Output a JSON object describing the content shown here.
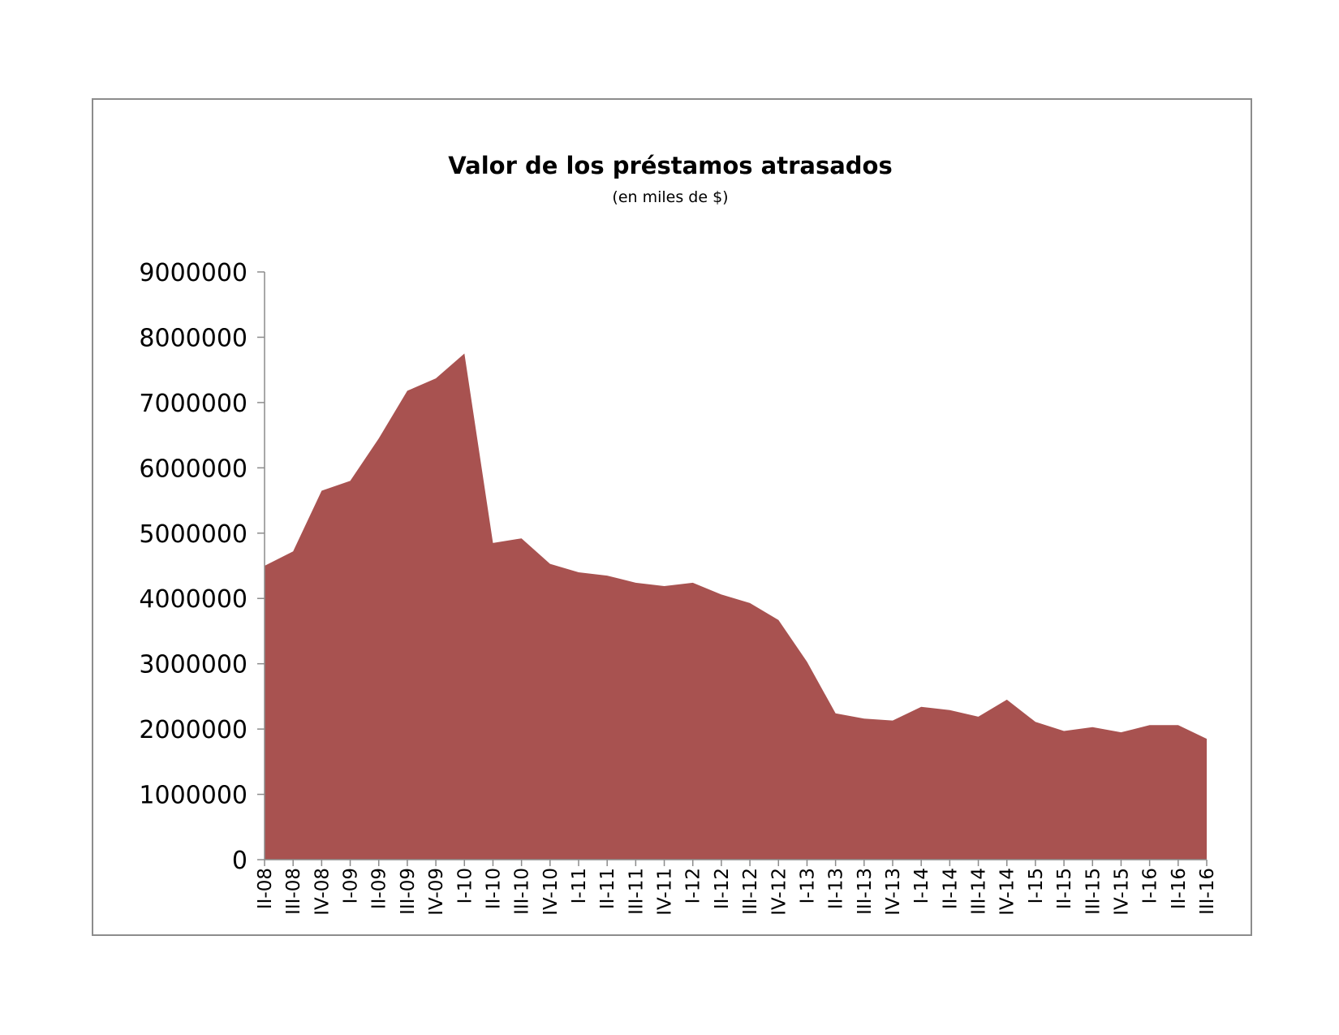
{
  "chart_data": {
    "type": "area",
    "title": "Valor de los préstamos atrasados",
    "subtitle": "(en miles de $)",
    "xlabel": "",
    "ylabel": "",
    "ylim": [
      0,
      9000000
    ],
    "yticks": [
      "0",
      "1000000",
      "2000000",
      "3000000",
      "4000000",
      "5000000",
      "6000000",
      "7000000",
      "8000000",
      "9000000"
    ],
    "grid": false,
    "legend": "none",
    "color": "#a85250",
    "categories": [
      "II-08",
      "III-08",
      "IV-08",
      "I-09",
      "II-09",
      "III-09",
      "IV-09",
      "I-10",
      "II-10",
      "III-10",
      "IV-10",
      "I-11",
      "II-11",
      "III-11",
      "IV-11",
      "I-12",
      "II-12",
      "III-12",
      "IV-12",
      "I-13",
      "II-13",
      "III-13",
      "IV-13",
      "I-14",
      "II-14",
      "III-14",
      "IV-14",
      "I-15",
      "II-15",
      "III-15",
      "IV-15",
      "I-16",
      "II-16",
      "III-16"
    ],
    "values": [
      4500000,
      4720000,
      5650000,
      5800000,
      6450000,
      7180000,
      7370000,
      7750000,
      4850000,
      4920000,
      4530000,
      4400000,
      4350000,
      4240000,
      4190000,
      4240000,
      4060000,
      3930000,
      3670000,
      3030000,
      2240000,
      2160000,
      2130000,
      2340000,
      2290000,
      2190000,
      2450000,
      2110000,
      1970000,
      2030000,
      1950000,
      2060000,
      2060000,
      1850000
    ]
  }
}
